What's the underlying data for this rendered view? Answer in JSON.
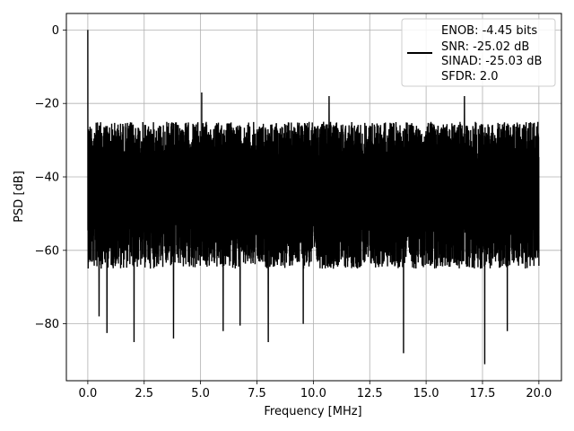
{
  "chart_data": {
    "type": "line",
    "xlabel": "Frequency [MHz]",
    "ylabel": "PSD [dB]",
    "xlim": [
      -0.95,
      21.0
    ],
    "ylim": [
      -95.5,
      4.5
    ],
    "xticks": [
      0.0,
      2.5,
      5.0,
      7.5,
      10.0,
      12.5,
      15.0,
      17.5,
      20.0
    ],
    "xtick_labels": [
      "0.0",
      "2.5",
      "5.0",
      "7.5",
      "10.0",
      "12.5",
      "15.0",
      "17.5",
      "20.0"
    ],
    "yticks": [
      0,
      -20,
      -40,
      -60,
      -80
    ],
    "ytick_labels": [
      "0",
      "−20",
      "−40",
      "−60",
      "−80"
    ],
    "grid": true,
    "legend_position": "top-right",
    "series": [
      {
        "name": "ENOB: -4.45 bits\nSNR: -25.02 dB\nSINAD: -25.03 dB\nSFDR: 2.0",
        "color": "#000000",
        "x_range": [
          0.0,
          20.0
        ],
        "noise_floor_db_range": [
          -35,
          -25
        ],
        "peaks": [
          {
            "x": 0.0,
            "y": 0.0
          },
          {
            "x": 5.05,
            "y": -17.0
          },
          {
            "x": 10.7,
            "y": -18.0
          },
          {
            "x": 16.7,
            "y": -18.0
          },
          {
            "x": 14.0,
            "y": -21.0
          }
        ],
        "dips": [
          {
            "x": 0.5,
            "y": -78.0
          },
          {
            "x": 0.85,
            "y": -82.5
          },
          {
            "x": 2.05,
            "y": -85.0
          },
          {
            "x": 3.8,
            "y": -84.0
          },
          {
            "x": 6.0,
            "y": -82.0
          },
          {
            "x": 6.75,
            "y": -80.5
          },
          {
            "x": 8.0,
            "y": -85.0
          },
          {
            "x": 9.55,
            "y": -80.0
          },
          {
            "x": 14.0,
            "y": -88.0
          },
          {
            "x": 17.6,
            "y": -91.0
          },
          {
            "x": 18.6,
            "y": -82.0
          }
        ]
      }
    ]
  },
  "legend": {
    "lines": [
      "ENOB: -4.45 bits",
      "SNR: -25.02 dB",
      "SINAD: -25.03 dB",
      "SFDR: 2.0"
    ]
  }
}
